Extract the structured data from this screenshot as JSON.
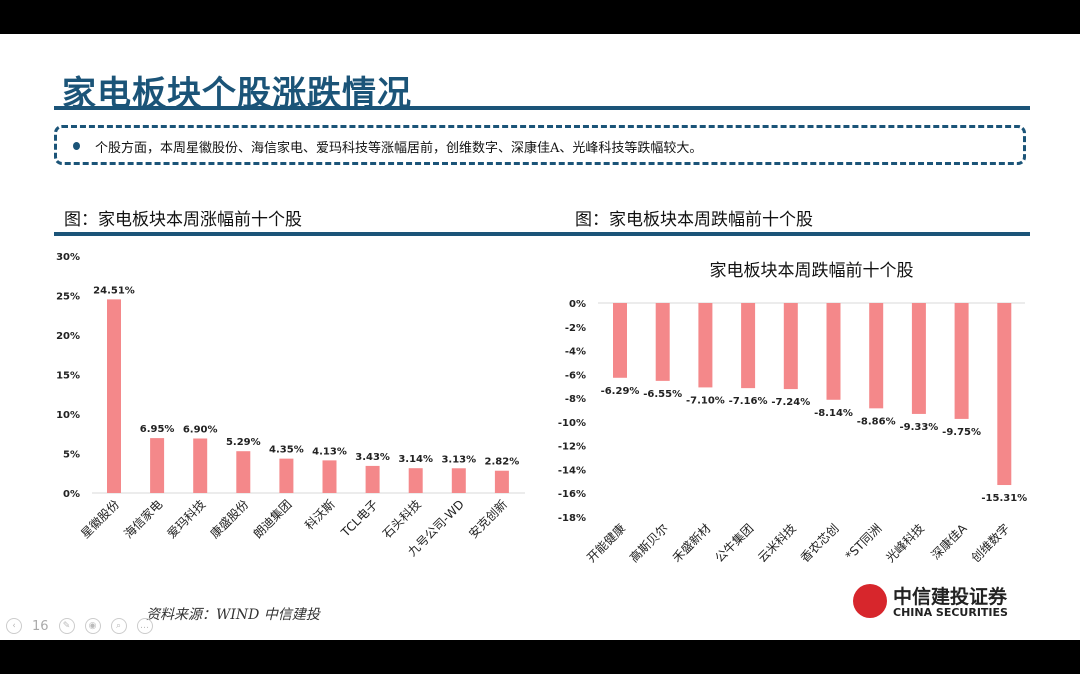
{
  "slide": {
    "title": "家电板块个股涨跌情况",
    "summary": "个股方面，本周星徽股份、海信家电、爱玛科技等涨幅居前，创维数字、深康佳A、光峰科技等跌幅较大。",
    "left_figure_title": "图：家电板块本周涨幅前十个股",
    "right_figure_title": "图：家电板块本周跌幅前十个股",
    "source": "资料来源：WIND   中信建投",
    "page_number": "16",
    "logo": {
      "cn": "中信建投证券",
      "en": "CHINA SECURITIES"
    }
  },
  "colors": {
    "bar": "#f4888a",
    "brand": "#1b5478",
    "logo_red": "#d7262c"
  },
  "chart_data": [
    {
      "type": "bar",
      "title": "",
      "categories": [
        "星徽股份",
        "海信家电",
        "爱玛科技",
        "康盛股份",
        "朗迪集团",
        "科沃斯",
        "TCL电子",
        "石头科技",
        "九号公司-WD",
        "安克创新"
      ],
      "values": [
        24.51,
        6.95,
        6.9,
        5.29,
        4.35,
        4.13,
        3.43,
        3.14,
        3.13,
        2.82
      ],
      "data_labels": [
        "24.51%",
        "6.95%",
        "6.90%",
        "5.29%",
        "4.35%",
        "4.13%",
        "3.43%",
        "3.14%",
        "3.13%",
        "2.82%"
      ],
      "ylim": [
        0,
        30
      ],
      "yticks": [
        "0%",
        "5%",
        "10%",
        "15%",
        "20%",
        "25%",
        "30%"
      ],
      "grid": false
    },
    {
      "type": "bar",
      "title": "家电板块本周跌幅前十个股",
      "categories": [
        "开能健康",
        "高斯贝尔",
        "禾盛新材",
        "公牛集团",
        "云米科技",
        "香农芯创",
        "*ST同洲",
        "光峰科技",
        "深康佳A",
        "创维数字"
      ],
      "values": [
        -6.29,
        -6.55,
        -7.1,
        -7.16,
        -7.24,
        -8.14,
        -8.86,
        -9.33,
        -9.75,
        -15.31
      ],
      "data_labels": [
        "-6.29%",
        "-6.55%",
        "-7.10%",
        "-7.16%",
        "-7.24%",
        "-8.14%",
        "-8.86%",
        "-9.33%",
        "-9.75%",
        "-15.31%"
      ],
      "ylim": [
        -18,
        0
      ],
      "yticks": [
        "0%",
        "-2%",
        "-4%",
        "-6%",
        "-8%",
        "-10%",
        "-12%",
        "-14%",
        "-16%",
        "-18%"
      ],
      "grid": false
    }
  ]
}
